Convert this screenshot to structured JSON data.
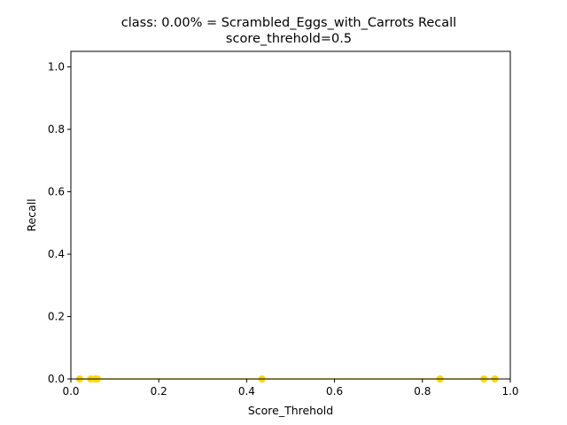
{
  "chart_data": {
    "type": "line",
    "title": "class: 0.00% = Scrambled_Eggs_with_Carrots Recall",
    "subtitle": "score_threhold=0.5",
    "xlabel": "Score_Threhold",
    "ylabel": "Recall",
    "xlim": [
      0.0,
      1.0
    ],
    "ylim": [
      0.0,
      1.05
    ],
    "xticks": [
      "0.0",
      "0.2",
      "0.4",
      "0.6",
      "0.8",
      "1.0"
    ],
    "yticks": [
      "0.0",
      "0.2",
      "0.4",
      "0.6",
      "0.8",
      "1.0"
    ],
    "grid": false,
    "series": [
      {
        "color": "#ffd700",
        "x": [
          0.02,
          0.045,
          0.055,
          0.06,
          0.435,
          0.84,
          0.94,
          0.965
        ],
        "y": [
          0,
          0,
          0,
          0,
          0,
          0,
          0,
          0
        ]
      }
    ]
  }
}
